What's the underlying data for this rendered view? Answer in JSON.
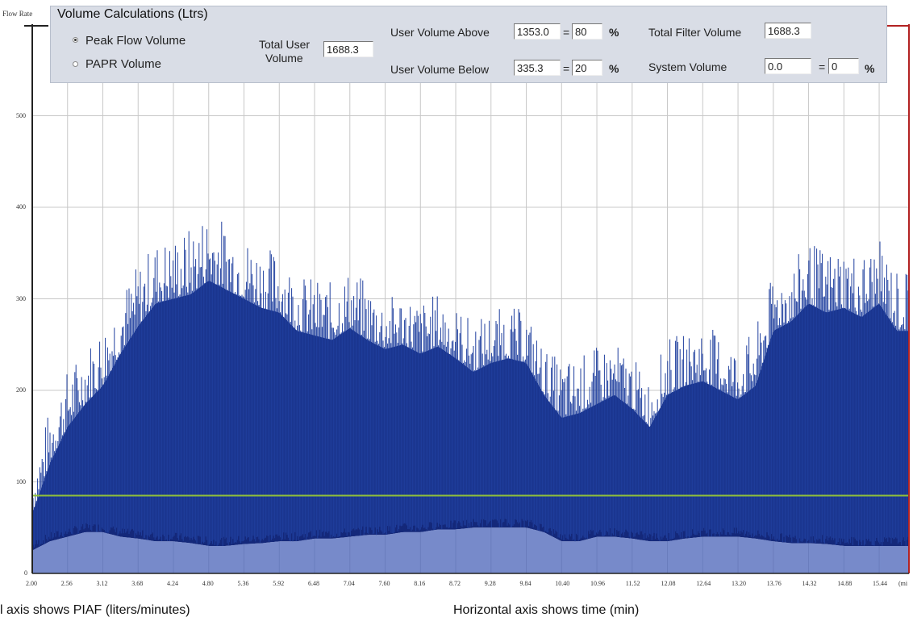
{
  "panel": {
    "flow_rate_label": "Flow Rate",
    "title": "Volume Calculations (Ltrs)",
    "radio_peak": "Peak Flow Volume",
    "radio_papr": "PAPR Volume",
    "total_user_label_1": "Total User",
    "total_user_label_2": "Volume",
    "total_user_value": "1688.3",
    "above_label": "User Volume Above",
    "above_value": "1353.0",
    "above_pct": "80",
    "below_label": "User Volume Below",
    "below_value": "335.3",
    "below_pct": "20",
    "eq": "=",
    "pct_sign": "%",
    "total_filter_label": "Total Filter Volume",
    "total_filter_value": "1688.3",
    "system_label": "System Volume",
    "system_value": "0.0",
    "system_pct": "0"
  },
  "captions": {
    "y": "l axis shows PIAF (liters/minutes)",
    "x": "Horizontal axis shows time (min)",
    "x_unit": "(mi"
  },
  "colors": {
    "signal": "#1f3f9e",
    "signal_dark": "#14287a",
    "threshold": "#8fbf3a",
    "grid": "#c8c8c8",
    "right_axis": "#b22222"
  },
  "chart_data": {
    "type": "area",
    "title": "",
    "xlabel": "Horizontal axis shows time (min)",
    "ylabel": "l axis shows PIAF (liters/minutes)",
    "x_ticks": [
      "2.00",
      "2.56",
      "3.12",
      "3.68",
      "4.24",
      "4.80",
      "5.36",
      "5.92",
      "6.48",
      "7.04",
      "7.60",
      "8.16",
      "8.72",
      "9.28",
      "9.84",
      "10.40",
      "10.96",
      "11.52",
      "12.08",
      "12.64",
      "13.20",
      "13.76",
      "14.32",
      "14.88",
      "15.44"
    ],
    "y_ticks": [
      "0",
      "100",
      "200",
      "300",
      "400",
      "500"
    ],
    "xlim": [
      2.0,
      15.9
    ],
    "ylim": [
      0,
      600
    ],
    "threshold": 85,
    "grid": true,
    "series": [
      {
        "x": [
          2.0,
          2.28,
          2.56,
          2.84,
          3.12,
          3.4,
          3.68,
          3.96,
          4.24,
          4.52,
          4.8,
          5.08,
          5.36,
          5.64,
          5.92,
          6.2,
          6.48,
          6.76,
          7.04,
          7.32,
          7.6,
          7.88,
          8.16,
          8.44,
          8.72,
          9.0,
          9.28,
          9.56,
          9.84,
          10.12,
          10.4,
          10.68,
          10.96,
          11.24,
          11.52,
          11.8,
          12.08,
          12.36,
          12.64,
          12.92,
          13.2,
          13.48,
          13.76,
          14.04,
          14.32,
          14.6,
          14.88,
          15.16,
          15.44,
          15.72
        ],
        "peak": [
          105,
          175,
          215,
          240,
          265,
          300,
          330,
          355,
          360,
          370,
          390,
          375,
          360,
          350,
          345,
          320,
          315,
          310,
          325,
          310,
          295,
          300,
          290,
          300,
          285,
          270,
          280,
          285,
          280,
          240,
          225,
          230,
          240,
          245,
          230,
          205,
          250,
          255,
          265,
          255,
          240,
          260,
          320,
          330,
          355,
          345,
          350,
          340,
          355,
          325
        ],
        "typical": [
          65,
          120,
          160,
          185,
          205,
          240,
          270,
          295,
          300,
          305,
          320,
          310,
          300,
          290,
          285,
          265,
          260,
          255,
          268,
          255,
          245,
          250,
          240,
          248,
          235,
          220,
          230,
          235,
          230,
          195,
          170,
          175,
          185,
          195,
          180,
          160,
          195,
          205,
          210,
          200,
          190,
          205,
          265,
          275,
          295,
          285,
          290,
          280,
          295,
          265
        ],
        "trough": [
          25,
          35,
          40,
          45,
          45,
          40,
          38,
          35,
          35,
          33,
          30,
          30,
          32,
          33,
          35,
          35,
          38,
          38,
          40,
          42,
          42,
          45,
          45,
          48,
          48,
          50,
          50,
          50,
          50,
          45,
          35,
          35,
          40,
          40,
          38,
          35,
          35,
          38,
          40,
          40,
          40,
          38,
          35,
          33,
          33,
          32,
          30,
          30,
          30,
          30
        ]
      }
    ]
  }
}
